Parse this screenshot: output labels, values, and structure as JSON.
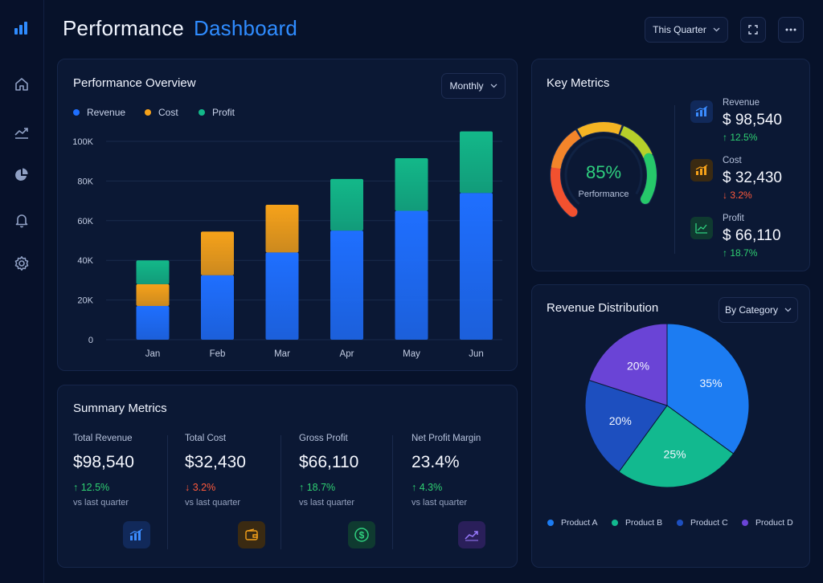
{
  "header": {
    "title_main": "Performance",
    "title_accent": "Dashboard",
    "period_select": "This Quarter"
  },
  "sidebar": {
    "items": [
      {
        "icon": "bar-chart-logo-icon"
      },
      {
        "icon": "home-icon"
      },
      {
        "icon": "trend-icon"
      },
      {
        "icon": "pie-chart-icon"
      },
      {
        "icon": "bell-icon"
      },
      {
        "icon": "gear-icon"
      }
    ]
  },
  "overview": {
    "title": "Performance Overview",
    "select": "Monthly"
  },
  "chart_data": {
    "type": "bar",
    "stacked": true,
    "categories": [
      "Jan",
      "Feb",
      "Mar",
      "Apr",
      "May",
      "Jun"
    ],
    "series": [
      {
        "name": "Revenue",
        "color": "#1f6fff",
        "values": [
          17,
          32.5,
          44,
          55,
          65,
          74
        ]
      },
      {
        "name": "Cost",
        "color": "#f6a21a",
        "values": [
          11,
          22,
          24,
          0,
          0,
          0
        ]
      },
      {
        "name": "Profit",
        "color": "#13b889",
        "values": [
          12,
          0,
          0,
          26,
          26.5,
          31
        ]
      }
    ],
    "yticks": [
      "0",
      "20K",
      "40K",
      "60K",
      "80K",
      "100K"
    ],
    "ylim": [
      0,
      100
    ],
    "legend": "top-left",
    "grid": true
  },
  "key_metrics": {
    "title": "Key Metrics",
    "gauge_value": "85%",
    "gauge_label": "Performance",
    "gauge_fraction": 0.85,
    "items": [
      {
        "label": "Revenue",
        "value": "$ 98,540",
        "delta": "↑ 12.5%",
        "dir": "up"
      },
      {
        "label": "Cost",
        "value": "$ 32,430",
        "delta": "↓ 3.2%",
        "dir": "down"
      },
      {
        "label": "Profit",
        "value": "$ 66,110",
        "delta": "↑ 18.7%",
        "dir": "up"
      }
    ]
  },
  "summary": {
    "title": "Summary Metrics",
    "items": [
      {
        "label": "Total Revenue",
        "value": "$98,540",
        "delta": "↑ 12.5%",
        "dir": "up",
        "sub": "vs last quarter"
      },
      {
        "label": "Total Cost",
        "value": "$32,430",
        "delta": "↓ 3.2%",
        "dir": "down",
        "sub": "vs last quarter"
      },
      {
        "label": "Gross Profit",
        "value": "$66,110",
        "delta": "↑ 18.7%",
        "dir": "up",
        "sub": "vs last quarter"
      },
      {
        "label": "Net Profit Margin",
        "value": "23.4%",
        "delta": "↑ 4.3%",
        "dir": "up",
        "sub": "vs last quarter"
      }
    ]
  },
  "distribution": {
    "title": "Revenue Distribution",
    "select": "By Category",
    "slices": [
      {
        "name": "Product A",
        "percent": 35,
        "label": "35%",
        "color": "#1c7cf2"
      },
      {
        "name": "Product B",
        "percent": 25,
        "label": "25%",
        "color": "#12b98f"
      },
      {
        "name": "Product C",
        "percent": 20,
        "label": "20%",
        "color": "#1d4fbf"
      },
      {
        "name": "Product D",
        "percent": 20,
        "label": "20%",
        "color": "#6a44d6"
      }
    ]
  }
}
